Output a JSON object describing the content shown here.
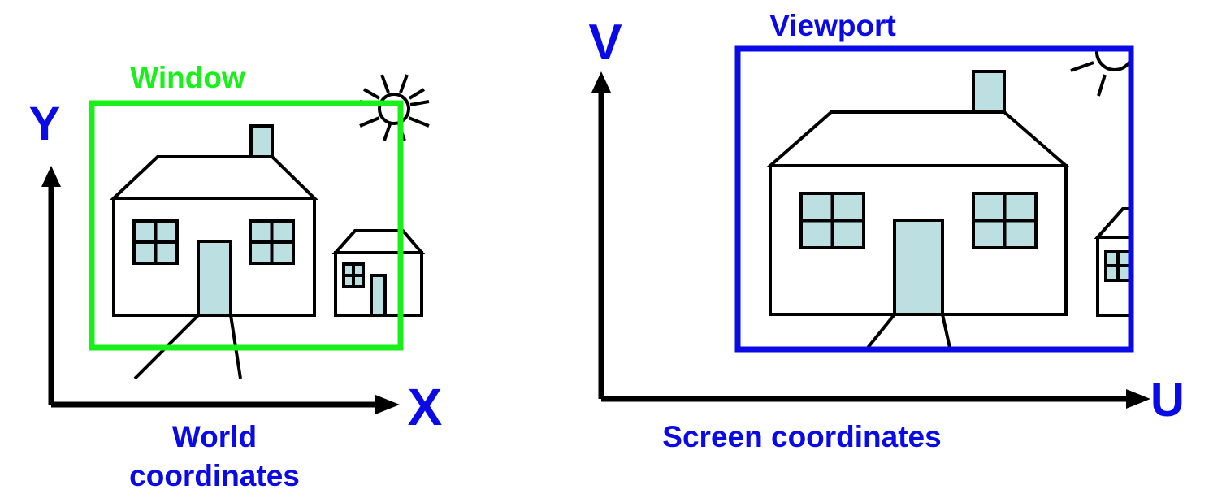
{
  "world": {
    "axis_y_label": "Y",
    "axis_x_label": "X",
    "window_label": "Window",
    "caption_line1": "World",
    "caption_line2": "coordinates"
  },
  "screen": {
    "axis_v_label": "V",
    "axis_u_label": "U",
    "viewport_label": "Viewport",
    "caption": "Screen coordinates"
  },
  "colors": {
    "axis_label": "#0a0ae6",
    "window_frame": "#19f019",
    "viewport_frame": "#0a0ae6",
    "glass_fill": "#bcdfe2",
    "line": "#000000"
  },
  "icons": {
    "sun": "sun-icon",
    "house": "house-icon",
    "small_house": "small-house-icon"
  }
}
